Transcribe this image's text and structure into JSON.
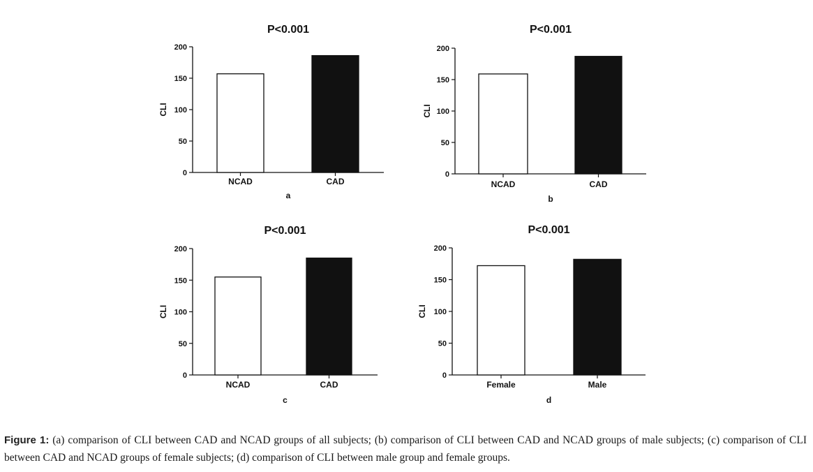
{
  "chart_data": [
    {
      "type": "bar",
      "title": "P<0.001",
      "panel_label": "a",
      "ylabel": "CLI",
      "xlabel": "",
      "ylim": [
        0,
        200
      ],
      "yticks": [
        0,
        50,
        100,
        150,
        200
      ],
      "categories": [
        "NCAD",
        "CAD"
      ],
      "values": [
        157,
        186
      ],
      "bar_fills": [
        "#ffffff",
        "#111111"
      ],
      "grid": false
    },
    {
      "type": "bar",
      "title": "P<0.001",
      "panel_label": "b",
      "ylabel": "CLI",
      "xlabel": "",
      "ylim": [
        0,
        200
      ],
      "yticks": [
        0,
        50,
        100,
        150,
        200
      ],
      "categories": [
        "NCAD",
        "CAD"
      ],
      "values": [
        159,
        187
      ],
      "bar_fills": [
        "#ffffff",
        "#111111"
      ],
      "grid": false
    },
    {
      "type": "bar",
      "title": "P<0.001",
      "panel_label": "c",
      "ylabel": "CLI",
      "xlabel": "",
      "ylim": [
        0,
        200
      ],
      "yticks": [
        0,
        50,
        100,
        150,
        200
      ],
      "categories": [
        "NCAD",
        "CAD"
      ],
      "values": [
        155,
        185
      ],
      "bar_fills": [
        "#ffffff",
        "#111111"
      ],
      "grid": false
    },
    {
      "type": "bar",
      "title": "P<0.001",
      "panel_label": "d",
      "ylabel": "CLI",
      "xlabel": "",
      "ylim": [
        0,
        200
      ],
      "yticks": [
        0,
        50,
        100,
        150,
        200
      ],
      "categories": [
        "Female",
        "Male"
      ],
      "values": [
        172,
        182
      ],
      "bar_fills": [
        "#ffffff",
        "#111111"
      ],
      "grid": false
    }
  ],
  "caption": {
    "label": "Figure 1:",
    "text": "(a) comparison of CLI between CAD and NCAD groups of all subjects; (b) comparison of CLI between CAD and NCAD groups of male subjects; (c) comparison of CLI between CAD and NCAD groups of female subjects; (d) comparison of CLI between male group and female groups."
  }
}
